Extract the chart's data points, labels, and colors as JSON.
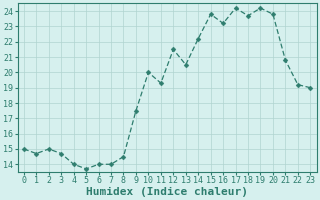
{
  "x": [
    0,
    1,
    2,
    3,
    4,
    5,
    6,
    7,
    8,
    9,
    10,
    11,
    12,
    13,
    14,
    15,
    16,
    17,
    18,
    19,
    20,
    21,
    22,
    23
  ],
  "y": [
    15,
    14.7,
    15,
    14.7,
    14,
    13.7,
    14,
    14,
    14.5,
    17.5,
    20,
    19.3,
    21.5,
    20.5,
    22.2,
    23.8,
    23.2,
    24.2,
    23.7,
    24.2,
    23.8,
    20.8,
    19.2,
    19
  ],
  "line_color": "#2e7d6e",
  "marker": "D",
  "marker_size": 2.5,
  "bg_color": "#d6f0ee",
  "grid_color": "#b0d4d0",
  "spine_color": "#2e7d6e",
  "xlabel": "Humidex (Indice chaleur)",
  "xlim": [
    -0.5,
    23.5
  ],
  "ylim": [
    13.5,
    24.5
  ],
  "yticks": [
    14,
    15,
    16,
    17,
    18,
    19,
    20,
    21,
    22,
    23,
    24
  ],
  "xticks": [
    0,
    1,
    2,
    3,
    4,
    5,
    6,
    7,
    8,
    9,
    10,
    11,
    12,
    13,
    14,
    15,
    16,
    17,
    18,
    19,
    20,
    21,
    22,
    23
  ],
  "tick_fontsize": 6,
  "xlabel_fontsize": 8
}
